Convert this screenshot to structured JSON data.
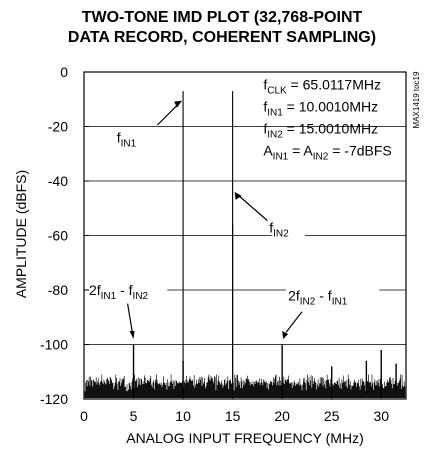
{
  "chart_data": {
    "type": "line",
    "title_lines": [
      "TWO-TONE IMD PLOT (32,768-POINT",
      "DATA RECORD, COHERENT SAMPLING)"
    ],
    "xlabel": "ANALOG INPUT FREQUENCY (MHz)",
    "ylabel": "AMPLITUDE (dBFS)",
    "xlim": [
      0,
      32.5
    ],
    "ylim": [
      -120,
      0
    ],
    "xticks": [
      0,
      5,
      10,
      15,
      20,
      25,
      30
    ],
    "yticks": [
      0,
      -20,
      -40,
      -60,
      -80,
      -100,
      -120
    ],
    "grid": true,
    "spikes": [
      {
        "x": 5.0,
        "y": -100
      },
      {
        "x": 10.0,
        "y": -7
      },
      {
        "x": 15.0,
        "y": -7
      },
      {
        "x": 20.0,
        "y": -100
      },
      {
        "x": 25.0,
        "y": -108
      },
      {
        "x": 30.0,
        "y": -102
      },
      {
        "x": 10.0,
        "y": -106
      },
      {
        "x": 15.0,
        "y": -56
      },
      {
        "x": 28.5,
        "y": -106
      },
      {
        "x": 31.5,
        "y": -107
      }
    ],
    "noise_floor_db": [
      -118,
      -113
    ],
    "annotations": [
      {
        "base": "f",
        "sub": "IN1",
        "suffix": ""
      },
      {
        "base": "f",
        "sub": "IN2",
        "suffix": ""
      },
      {
        "base": "2f",
        "sub": "IN1",
        "suffix": " - f",
        "sub2": "IN2"
      },
      {
        "base": "2f",
        "sub": "IN2",
        "suffix": " - f",
        "sub2": "IN1"
      }
    ],
    "conditions": [
      {
        "base": "f",
        "sub": "CLK",
        "rest": " = 65.0117MHz"
      },
      {
        "base": "f",
        "sub": "IN1",
        "rest": " = 10.0010MHz"
      },
      {
        "base": "f",
        "sub": "IN2",
        "rest": " = 15.0010MHz"
      },
      {
        "base": "A",
        "sub": "IN1",
        "rest": " = A",
        "sub2": "IN2",
        "rest2": " = -7dBFS"
      }
    ],
    "side_label": "MAX1419 toc19"
  }
}
